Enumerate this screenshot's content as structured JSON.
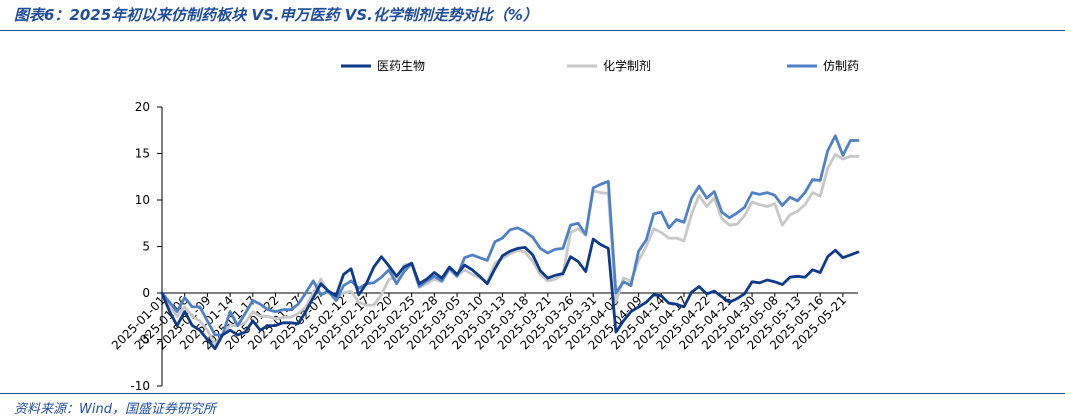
{
  "title": "图表6：2025年初以来仿制药板块 VS.申万医药 VS.化学制剂走势对比（%）",
  "source": "资料来源：Wind，国盛证券研究所",
  "chart_data": {
    "type": "line",
    "x": [
      "2025-01-01",
      "2025-01-02",
      "2025-01-03",
      "2025-01-06",
      "2025-01-07",
      "2025-01-08",
      "2025-01-09",
      "2025-01-10",
      "2025-01-13",
      "2025-01-14",
      "2025-01-15",
      "2025-01-16",
      "2025-01-17",
      "2025-01-20",
      "2025-01-21",
      "2025-01-22",
      "2025-01-23",
      "2025-01-24",
      "2025-01-27",
      "2025-02-05",
      "2025-02-06",
      "2025-02-07",
      "2025-02-10",
      "2025-02-11",
      "2025-02-12",
      "2025-02-13",
      "2025-02-14",
      "2025-02-17",
      "2025-02-18",
      "2025-02-19",
      "2025-02-20",
      "2025-02-21",
      "2025-02-24",
      "2025-02-25",
      "2025-02-26",
      "2025-02-27",
      "2025-02-28",
      "2025-03-03",
      "2025-03-04",
      "2025-03-05",
      "2025-03-06",
      "2025-03-07",
      "2025-03-10",
      "2025-03-11",
      "2025-03-12",
      "2025-03-13",
      "2025-03-14",
      "2025-03-17",
      "2025-03-18",
      "2025-03-19",
      "2025-03-20",
      "2025-03-21",
      "2025-03-24",
      "2025-03-25",
      "2025-03-26",
      "2025-03-27",
      "2025-03-28",
      "2025-03-31",
      "2025-04-01",
      "2025-04-02",
      "2025-04-03",
      "2025-04-07",
      "2025-04-08",
      "2025-04-09",
      "2025-04-10",
      "2025-04-11",
      "2025-04-14",
      "2025-04-15",
      "2025-04-16",
      "2025-04-17",
      "2025-04-18",
      "2025-04-21",
      "2025-04-22",
      "2025-04-23",
      "2025-04-24",
      "2025-04-25",
      "2025-04-28",
      "2025-04-29",
      "2025-04-30",
      "2025-05-06",
      "2025-05-07",
      "2025-05-08",
      "2025-05-09",
      "2025-05-12",
      "2025-05-13",
      "2025-05-14",
      "2025-05-15",
      "2025-05-16",
      "2025-05-19",
      "2025-05-20",
      "2025-05-21",
      "2025-05-22",
      "2025-05-23"
    ],
    "tick_labels": [
      "2025-01-01",
      "2025-01-06",
      "2025-01-09",
      "2025-01-14",
      "2025-01-17",
      "2025-01-22",
      "2025-01-27",
      "2025-02-07",
      "2025-02-12",
      "2025-02-17",
      "2025-02-20",
      "2025-02-25",
      "2025-02-28",
      "2025-03-05",
      "2025-03-10",
      "2025-03-13",
      "2025-03-18",
      "2025-03-21",
      "2025-03-26",
      "2025-03-31",
      "2025-04-03",
      "2025-04-09",
      "2025-04-14",
      "2025-04-17",
      "2025-04-22",
      "2025-04-25",
      "2025-04-30",
      "2025-05-08",
      "2025-05-13",
      "2025-05-16",
      "2025-05-21"
    ],
    "ylim": [
      -10,
      20
    ],
    "yticks": [
      -10,
      -5,
      0,
      5,
      10,
      15,
      20
    ],
    "legend_position": "top",
    "series": [
      {
        "name": "医药生物",
        "color": "#0d3a8a",
        "width": 2.8,
        "values": [
          0,
          -2,
          -3.5,
          -2,
          -3.5,
          -4,
          -5,
          -6,
          -4.5,
          -4,
          -4.5,
          -4.2,
          -3,
          -4,
          -3.5,
          -3.5,
          -3.2,
          -3.2,
          -3.3,
          -2,
          -0.5,
          1,
          0.2,
          -0.3,
          2,
          2.6,
          -0.2,
          1,
          2.8,
          3.9,
          2.9,
          1.8,
          2.8,
          3.2,
          1,
          1.5,
          2.2,
          1.6,
          2.8,
          2,
          3,
          2.5,
          1.8,
          1,
          2.6,
          4,
          4.5,
          4.8,
          4.9,
          4.1,
          2.4,
          1.6,
          1.9,
          2.1,
          3.9,
          3.4,
          2.3,
          5.8,
          5.2,
          4.8,
          -4.2,
          -3,
          -2,
          -1.5,
          -1,
          -0.2,
          -0.3,
          -1.1,
          -1.2,
          -1.5,
          0.1,
          0.7,
          -0.1,
          0.2,
          -0.4,
          -1,
          -0.6,
          -0.1,
          1.2,
          1.1,
          1.4,
          1.2,
          0.9,
          1.7,
          1.8,
          1.7,
          2.5,
          2.2,
          3.9,
          4.6,
          3.8,
          4.1,
          4.4
        ]
      },
      {
        "name": "化学制剂",
        "color": "#c8c8c8",
        "width": 2.8,
        "values": [
          0,
          -1.5,
          -2.5,
          -1.5,
          -2.5,
          -3,
          -4,
          -5.5,
          -4.5,
          -3.5,
          -3.5,
          -3.2,
          -2,
          -2.5,
          -2.5,
          -2.8,
          -2.6,
          -2.6,
          -2.2,
          -1.5,
          0,
          1.5,
          0,
          -0.5,
          0,
          0.2,
          -1,
          -1.3,
          -1.3,
          -0.2,
          1.5,
          1.6,
          3,
          3.2,
          0.6,
          1,
          1.5,
          1.2,
          2.5,
          1.8,
          2.5,
          2,
          1.6,
          1.2,
          3.2,
          3.7,
          4.2,
          4.6,
          4.4,
          3.4,
          2,
          1.3,
          1.5,
          2,
          6.5,
          6.9,
          6.2,
          11,
          10.8,
          10.7,
          -1,
          1.6,
          1.3,
          3.5,
          5,
          6.9,
          6.5,
          5.9,
          5.9,
          5.6,
          8.5,
          10.5,
          9.3,
          10.2,
          8,
          7.3,
          7.4,
          8.3,
          9.8,
          9.5,
          9.3,
          9.6,
          7.3,
          8.4,
          8.8,
          9.5,
          10.8,
          10.4,
          13.4,
          14.9,
          14.4,
          14.7,
          14.7
        ]
      },
      {
        "name": "仿制药",
        "color": "#4f81c7",
        "width": 2.8,
        "values": [
          0,
          -1,
          -2,
          -0.5,
          -1.5,
          -1.5,
          -3,
          -4.5,
          -4.5,
          -2,
          -3.5,
          -2.2,
          -0.8,
          -1.2,
          -1.8,
          -2,
          -1.8,
          -1.8,
          -1.2,
          0,
          1.3,
          -0.2,
          0.2,
          -0.8,
          0.8,
          1.3,
          0.5,
          1,
          1.1,
          1.7,
          2.5,
          1,
          2.3,
          3.2,
          0.7,
          1.3,
          1.8,
          1.3,
          2.7,
          1.8,
          3.8,
          4.1,
          3.8,
          3.5,
          5.5,
          5.9,
          6.8,
          7,
          6.6,
          6,
          4.8,
          4.3,
          4.7,
          4.8,
          7.3,
          7.5,
          6.3,
          11.3,
          11.7,
          12,
          0,
          1.2,
          0.8,
          4.5,
          5.7,
          8.5,
          8.7,
          7,
          7.9,
          7.6,
          10.2,
          11.5,
          10.2,
          10.9,
          8.7,
          8.1,
          8.6,
          9.2,
          10.8,
          10.6,
          10.8,
          10.5,
          9.4,
          10.3,
          9.9,
          10.8,
          12.2,
          12.1,
          15.3,
          16.9,
          14.8,
          16.4,
          16.4
        ]
      }
    ]
  }
}
